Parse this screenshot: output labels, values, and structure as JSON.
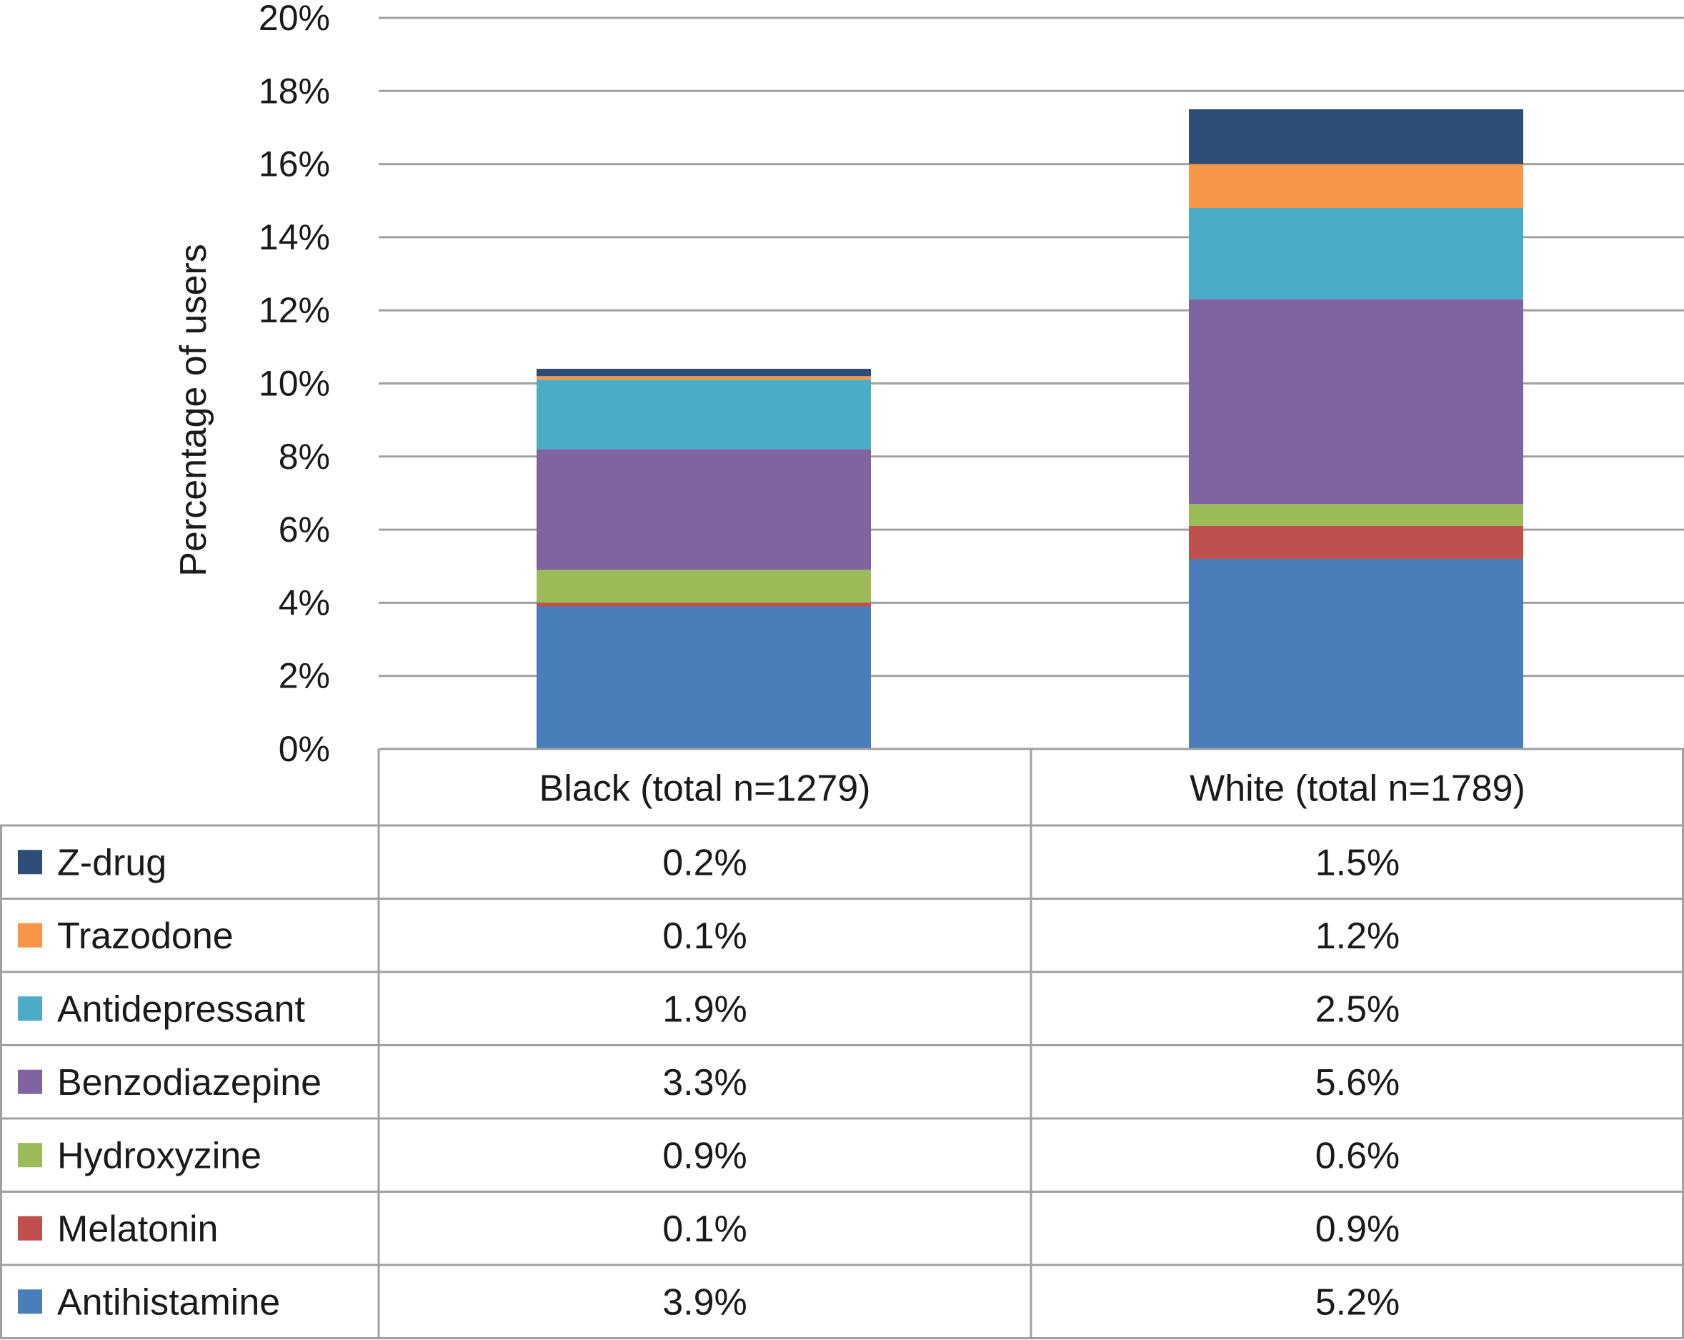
{
  "chart_data": {
    "type": "bar",
    "stacked": true,
    "categories": [
      "Black (total n=1279)",
      "White (total n=1789)"
    ],
    "series": [
      {
        "name": "Antihistamine",
        "color": "#4a7ebb",
        "values": [
          3.9,
          5.2
        ],
        "labels": [
          "3.9%",
          "5.2%"
        ]
      },
      {
        "name": "Melatonin",
        "color": "#c0504d",
        "values": [
          0.1,
          0.9
        ],
        "labels": [
          "0.1%",
          "0.9%"
        ]
      },
      {
        "name": "Hydroxyzine",
        "color": "#9bbb59",
        "values": [
          0.9,
          0.6
        ],
        "labels": [
          "0.9%",
          "0.6%"
        ]
      },
      {
        "name": "Benzodiazepine",
        "color": "#8064a2",
        "values": [
          3.3,
          5.6
        ],
        "labels": [
          "3.3%",
          "5.6%"
        ]
      },
      {
        "name": "Antidepressant",
        "color": "#4bacc6",
        "values": [
          1.9,
          2.5
        ],
        "labels": [
          "1.9%",
          "2.5%"
        ]
      },
      {
        "name": "Trazodone",
        "color": "#f79646",
        "values": [
          0.1,
          1.2
        ],
        "labels": [
          "0.1%",
          "1.2%"
        ]
      },
      {
        "name": "Z-drug",
        "color": "#2c4d75",
        "values": [
          0.2,
          1.5
        ],
        "labels": [
          "0.2%",
          "1.5%"
        ]
      }
    ],
    "ylabel": "Percentage of users",
    "ylim": [
      0,
      20
    ],
    "yticks": [
      0,
      2,
      4,
      6,
      8,
      10,
      12,
      14,
      16,
      18,
      20
    ],
    "ytick_labels": [
      "0%",
      "2%",
      "4%",
      "6%",
      "8%",
      "10%",
      "12%",
      "14%",
      "16%",
      "18%",
      "20%"
    ],
    "grid": true,
    "legend": "data-table-below",
    "data_table": true
  }
}
